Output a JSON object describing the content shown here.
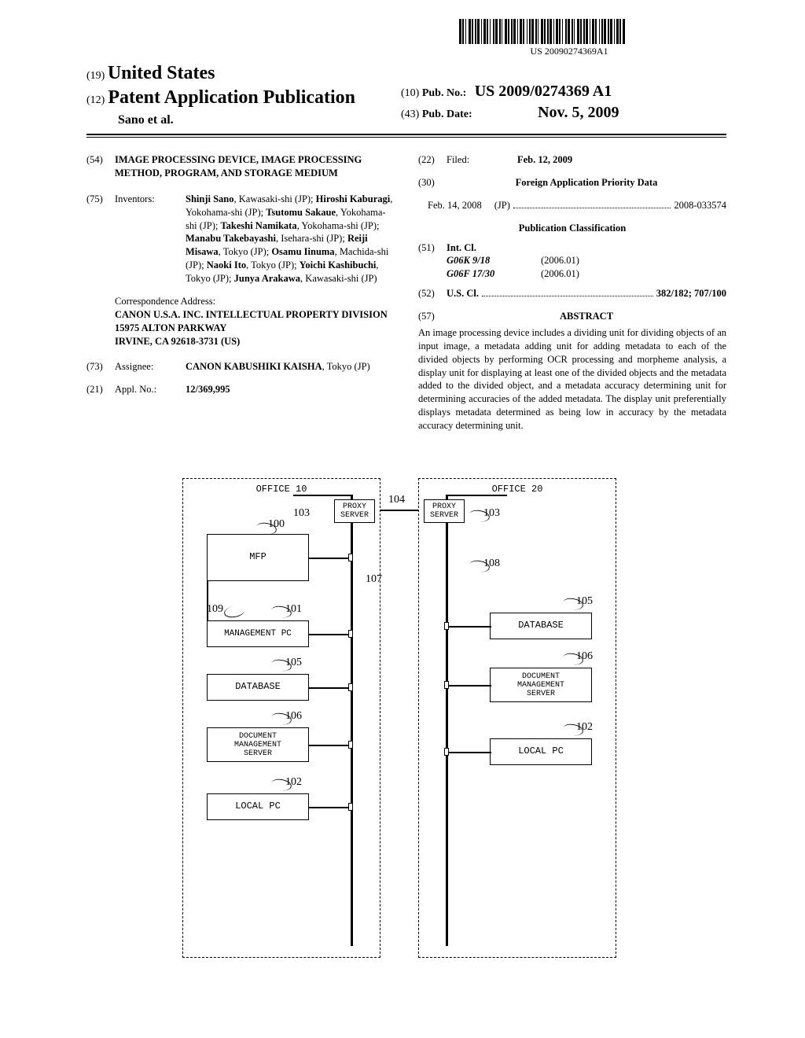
{
  "barcode_text": "US 20090274369A1",
  "header": {
    "code19": "(19)",
    "country": "United States",
    "code12": "(12)",
    "pub_type": "Patent Application Publication",
    "inventors_line": "Sano et al.",
    "code10": "(10)",
    "pub_no_label": "Pub. No.:",
    "pub_no": "US 2009/0274369 A1",
    "code43": "(43)",
    "pub_date_label": "Pub. Date:",
    "pub_date": "Nov. 5, 2009"
  },
  "left_col": {
    "code54": "(54)",
    "title": "IMAGE PROCESSING DEVICE, IMAGE PROCESSING METHOD, PROGRAM, AND STORAGE MEDIUM",
    "code75": "(75)",
    "inventors_label": "Inventors:",
    "inventors_html": "Shinji Sano|, Kawasaki-shi (JP); |Hiroshi Kaburagi|, Yokohama-shi (JP); |Tsutomu Sakaue|, Yokohama-shi (JP); |Takeshi Namikata|, Yokohama-shi (JP); |Manabu Takebayashi|, Isehara-shi (JP); |Reiji Misawa|, Tokyo (JP); |Osamu Iinuma|, Machida-shi (JP); |Naoki Ito|, Tokyo (JP); |Yoichi Kashibuchi|, Tokyo (JP); |Junya Arakawa|, Kawasaki-shi (JP)",
    "corr_label": "Correspondence Address:",
    "corr_body": "CANON U.S.A. INC. INTELLECTUAL PROPERTY DIVISION\n15975 ALTON PARKWAY\nIRVINE, CA 92618-3731 (US)",
    "code73": "(73)",
    "assignee_label": "Assignee:",
    "assignee": "CANON KABUSHIKI KAISHA",
    "assignee_loc": ", Tokyo (JP)",
    "code21": "(21)",
    "appl_label": "Appl. No.:",
    "appl_no": "12/369,995"
  },
  "right_col": {
    "code22": "(22)",
    "filed_label": "Filed:",
    "filed_date": "Feb. 12, 2009",
    "code30": "(30)",
    "foreign_heading": "Foreign Application Priority Data",
    "foreign_date": "Feb. 14, 2008",
    "foreign_country": "(JP)",
    "foreign_no": "2008-033574",
    "pub_class_heading": "Publication Classification",
    "code51": "(51)",
    "intcl_label": "Int. Cl.",
    "intcl_1_code": "G06K 9/18",
    "intcl_1_ver": "(2006.01)",
    "intcl_2_code": "G06F 17/30",
    "intcl_2_ver": "(2006.01)",
    "code52": "(52)",
    "uscl_label": "U.S. Cl.",
    "uscl_val": "382/182; 707/100",
    "code57": "(57)",
    "abstract_heading": "ABSTRACT",
    "abstract_text": "An image processing device includes a dividing unit for dividing objects of an input image, a metadata adding unit for adding metadata to each of the divided objects by performing OCR processing and morpheme analysis, a display unit for displaying at least one of the divided objects and the metadata added to the divided object, and a metadata accuracy determining unit for determining accuracies of the added metadata. The display unit preferentially displays metadata determined as being low in accuracy by the metadata accuracy determining unit."
  },
  "diagram": {
    "office10": "OFFICE 10",
    "office20": "OFFICE 20",
    "proxy": "PROXY\nSERVER",
    "mfp": "MFP",
    "mgmt_pc": "MANAGEMENT PC",
    "database": "DATABASE",
    "dms": "DOCUMENT\nMANAGEMENT\nSERVER",
    "local_pc": "LOCAL PC",
    "ref_100": "100",
    "ref_101": "101",
    "ref_102": "102",
    "ref_103": "103",
    "ref_104": "104",
    "ref_105": "105",
    "ref_106": "106",
    "ref_107": "107",
    "ref_108": "108",
    "ref_109": "109"
  }
}
